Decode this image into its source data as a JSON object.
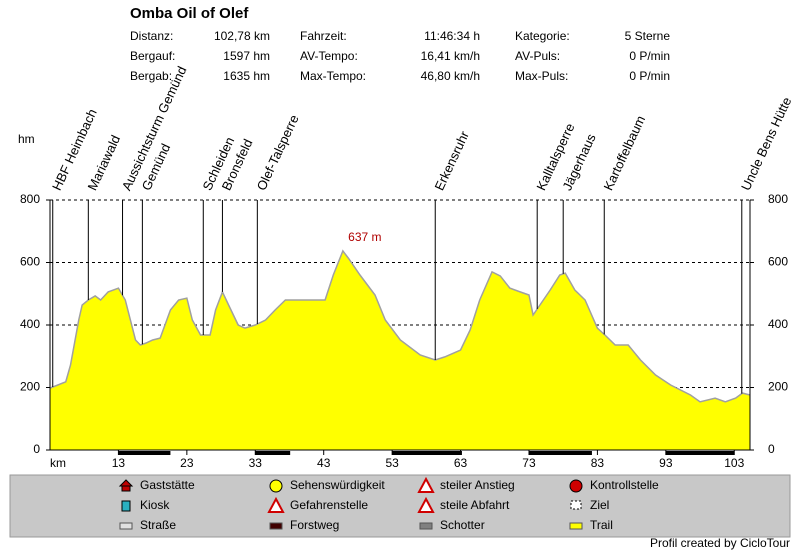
{
  "chart_data": {
    "type": "area",
    "title": "Omba Oil of Olef",
    "stats": [
      [
        {
          "label": "Distanz:",
          "value": "102,78 km"
        },
        {
          "label": "Fahrzeit:",
          "value": "11:46:34 h"
        },
        {
          "label": "Kategorie:",
          "value": "5 Sterne"
        }
      ],
      [
        {
          "label": "Bergauf:",
          "value": "1597 hm"
        },
        {
          "label": "AV-Tempo:",
          "value": "16,41 km/h"
        },
        {
          "label": "AV-Puls:",
          "value": "0 P/min"
        }
      ],
      [
        {
          "label": "Bergab:",
          "value": "1635 hm"
        },
        {
          "label": "Max-Tempo:",
          "value": "46,80 km/h"
        },
        {
          "label": "Max-Puls:",
          "value": "0 P/min"
        }
      ]
    ],
    "ylabel": "hm",
    "xlabel": "km",
    "color": "#ffff00",
    "line_color": "#a0a0a0",
    "x": [
      3,
      5.3,
      6,
      7.2,
      7.7,
      8.6,
      9.6,
      10.4,
      11.5,
      13,
      14,
      15.5,
      16.2,
      17,
      18,
      19.1,
      20.6,
      21.8,
      23,
      23.8,
      25,
      26.4,
      27.2,
      28.2,
      29.1,
      30.5,
      31.5,
      33,
      34.5,
      35.9,
      37.4,
      39.6,
      43.2,
      44.4,
      45.8,
      46.6,
      48.3,
      50.5,
      52,
      54.2,
      57.1,
      59.3,
      60.7,
      63,
      64.4,
      65.8,
      67.6,
      68.8,
      70.2,
      71.7,
      73,
      73.6,
      74.6,
      76.1,
      77.5,
      78.3,
      79.7,
      81.2,
      83,
      84.1,
      85.6,
      87.5,
      89.3,
      91.5,
      93.7,
      96.6,
      98,
      100.2,
      101.7,
      103.2,
      104.2,
      105.3
    ],
    "values": [
      198,
      218,
      272,
      416,
      464,
      480,
      493,
      480,
      506,
      518,
      480,
      352,
      336,
      342,
      352,
      358,
      448,
      480,
      486,
      416,
      368,
      368,
      448,
      506,
      464,
      400,
      390,
      400,
      416,
      448,
      480,
      480,
      480,
      560,
      637,
      614,
      560,
      496,
      416,
      352,
      304,
      288,
      298,
      320,
      384,
      480,
      570,
      557,
      518,
      506,
      496,
      432,
      464,
      512,
      560,
      566,
      512,
      480,
      390,
      368,
      336,
      336,
      288,
      240,
      208,
      176,
      154,
      166,
      154,
      166,
      182,
      176
    ],
    "annotations": [
      {
        "text": "637 m",
        "x": 45.8,
        "y": 637
      }
    ],
    "waypoints": [
      {
        "name": "HBF Heimbach",
        "km": 3.4
      },
      {
        "name": "Mariawald",
        "km": 8.6
      },
      {
        "name": "Aussichtsturm Gemünd",
        "km": 13.6
      },
      {
        "name": "Gemünd",
        "km": 16.5
      },
      {
        "name": "Schleiden",
        "km": 25.4
      },
      {
        "name": "Bronsfeld",
        "km": 28.2
      },
      {
        "name": "Olef-Talsperre",
        "km": 33.3
      },
      {
        "name": "Erkensruhr",
        "km": 59.3
      },
      {
        "name": "Kalltalsperre",
        "km": 74.2
      },
      {
        "name": "Jägerhaus",
        "km": 78
      },
      {
        "name": "Kartoffelbaum",
        "km": 84
      },
      {
        "name": "Uncle Bens Hütte",
        "km": 104.1
      }
    ],
    "surface_segments": [
      [
        13,
        20.6
      ],
      [
        33,
        38.1
      ],
      [
        53,
        63.2
      ],
      [
        73,
        82.2
      ],
      [
        93,
        103
      ]
    ],
    "surface_color": "#000000",
    "xlim": [
      3,
      105.3
    ],
    "ylim": [
      0,
      800
    ],
    "xticks": [
      13,
      23,
      33,
      43,
      53,
      63,
      73,
      83,
      93,
      103
    ],
    "yticks": [
      0,
      200,
      400,
      600,
      800
    ],
    "grid": true,
    "legend_items": [
      {
        "name": "Gaststätte"
      },
      {
        "name": "Kiosk"
      },
      {
        "name": "Straße",
        "color": "#e0e0e0"
      },
      {
        "name": "Sehenswürdigkeit"
      },
      {
        "name": "Gefahrenstelle"
      },
      {
        "name": "Forstweg",
        "color": "#400000"
      },
      {
        "name": "steiler Anstieg"
      },
      {
        "name": "steile Abfahrt"
      },
      {
        "name": "Schotter",
        "color": "#808080"
      },
      {
        "name": "Kontrollstelle"
      },
      {
        "name": "Ziel"
      },
      {
        "name": "Trail",
        "color": "#ffff00"
      }
    ],
    "credit": "Profil created by CicloTour"
  }
}
